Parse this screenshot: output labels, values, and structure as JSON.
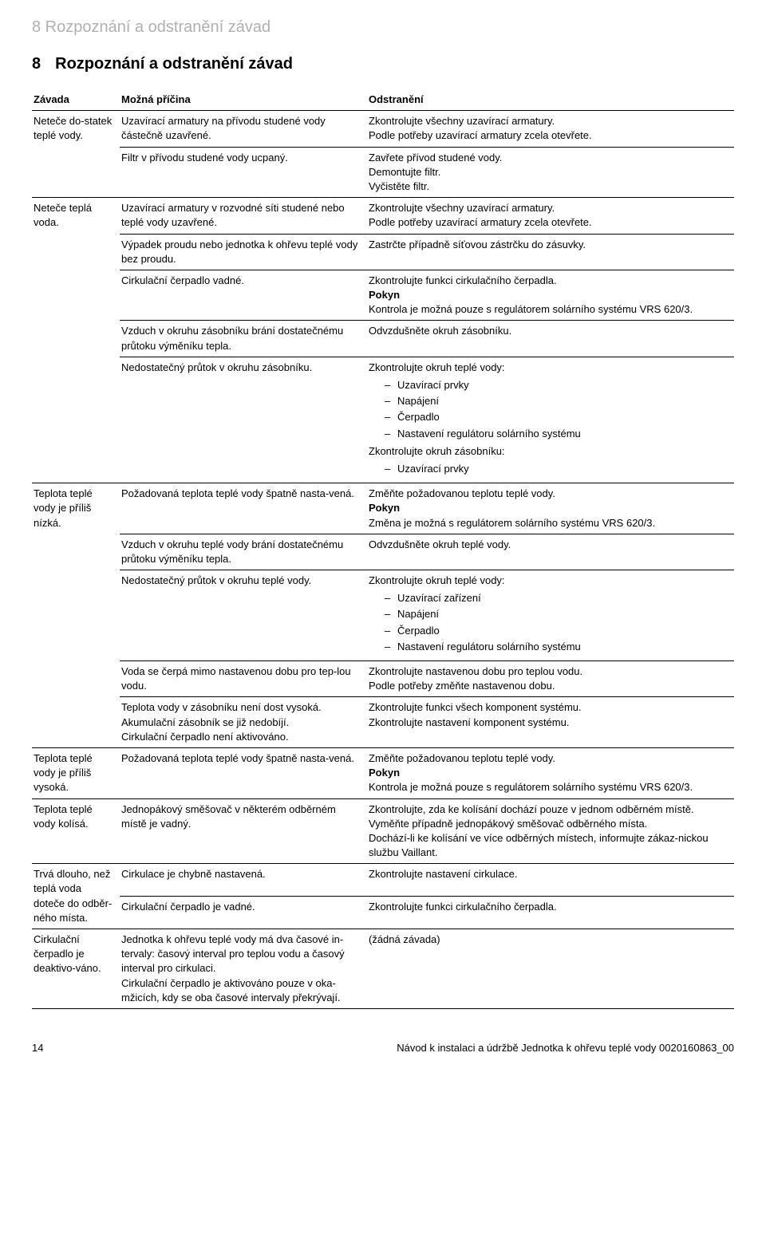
{
  "breadcrumb": "8 Rozpoznání a odstranění závad",
  "section_number": "8",
  "section_title": "Rozpoznání a odstranění závad",
  "headers": {
    "col1": "Závada",
    "col2": "Možná příčina",
    "col3": "Odstranění"
  },
  "r1": {
    "zavada": "Neteče do-statek teplé vody.",
    "p1": "Uzavírací armatury na přívodu studené vody částečně uzavřené.",
    "o1": "Zkontrolujte všechny uzavírací armatury.\nPodle potřeby uzavírací armatury zcela otevřete.",
    "p2": "Filtr v přívodu studené vody ucpaný.",
    "o2": "Zavřete přívod studené vody.\nDemontujte filtr.\nVyčistěte filtr."
  },
  "r2": {
    "zavada": "Neteče teplá voda.",
    "p1": "Uzavírací armatury v rozvodné síti studené nebo teplé vody uzavřené.",
    "o1": "Zkontrolujte všechny uzavírací armatury.\nPodle potřeby uzavírací armatury zcela otevřete.",
    "p2": "Výpadek proudu nebo jednotka k ohřevu teplé vody bez proudu.",
    "o2": "Zastrčte případně síťovou zástrčku do zásuvky.",
    "p3": "Cirkulační čerpadlo vadné.",
    "o3a": "Zkontrolujte funkci cirkulačního čerpadla.",
    "o3b": "Pokyn",
    "o3c": "Kontrola je možná pouze s regulátorem solárního systému VRS 620/3.",
    "p4": "Vzduch v okruhu zásobníku brání dostatečnému průtoku výměníku tepla.",
    "o4": "Odvzdušněte okruh zásobníku.",
    "p5": "Nedostatečný průtok v okruhu zásobníku.",
    "o5": "Zkontrolujte okruh teplé vody:",
    "o5_l1": "Uzavírací prvky",
    "o5_l2": "Napájení",
    "o5_l3": "Čerpadlo",
    "o5_l4": "Nastavení regulátoru solárního systému",
    "o5b": "Zkontrolujte okruh zásobníku:",
    "o5b_l1": "Uzavírací prvky"
  },
  "r3": {
    "zavada": "Teplota teplé vody je příliš nízká.",
    "p1": "Požadovaná teplota teplé vody špatně nasta-vená.",
    "o1a": "Změňte požadovanou teplotu teplé vody.",
    "o1b": "Pokyn",
    "o1c": "Změna je možná s regulátorem solárního systému VRS 620/3.",
    "p2": "Vzduch v okruhu teplé vody brání dostatečnému průtoku výměníku tepla.",
    "o2": "Odvzdušněte okruh teplé vody.",
    "p3": "Nedostatečný průtok v okruhu teplé vody.",
    "o3": "Zkontrolujte okruh teplé vody:",
    "o3_l1": "Uzavírací zařízení",
    "o3_l2": "Napájení",
    "o3_l3": "Čerpadlo",
    "o3_l4": "Nastavení regulátoru solárního systému",
    "p4": "Voda se čerpá mimo nastavenou dobu pro tep-lou vodu.",
    "o4": "Zkontrolujte nastavenou dobu pro teplou vodu.\nPodle potřeby změňte nastavenou dobu.",
    "p5": "Teplota vody v zásobníku není dost vysoká.\nAkumulační zásobník se již nedobíjí.\nCirkulační čerpadlo není aktivováno.",
    "o5": "Zkontrolujte funkci všech komponent systému.\nZkontrolujte nastavení komponent systému."
  },
  "r4": {
    "zavada": "Teplota teplé vody je příliš vysoká.",
    "p1": "Požadovaná teplota teplé vody špatně nasta-vená.",
    "o1a": "Změňte požadovanou teplotu teplé vody.",
    "o1b": "Pokyn",
    "o1c": "Kontrola je možná pouze s regulátorem solárního systému VRS 620/3."
  },
  "r5": {
    "zavada": "Teplota teplé vody kolísá.",
    "p1": "Jednopákový směšovač v některém odběrném místě je vadný.",
    "o1": "Zkontrolujte, zda ke kolísání dochází pouze v jednom odběrném místě.\nVyměňte případně jednopákový směšovač odběrného místa.\nDochází-li ke kolísání ve více odběrných místech, informujte zákaz-nickou službu Vaillant."
  },
  "r6": {
    "zavada": "Trvá dlouho, než teplá voda doteče do odběr-ného místa.",
    "p1": "Cirkulace je chybně nastavená.",
    "o1": "Zkontrolujte nastavení cirkulace.",
    "p2": "Cirkulační čerpadlo je vadné.",
    "o2": "Zkontrolujte funkci cirkulačního čerpadla."
  },
  "r7": {
    "zavada": "Cirkulační čerpadlo je deaktivo-váno.",
    "p1": "Jednotka k ohřevu teplé vody má dva časové in-tervaly: časový interval pro teplou vodu a časový interval pro cirkulaci.\nCirkulační čerpadlo je aktivováno pouze v oka-mžicích, kdy se oba časové intervaly překrývají.",
    "o1": "(žádná závada)"
  },
  "footer": {
    "page": "14",
    "doc": "Návod k instalaci a údržbě Jednotka k ohřevu teplé vody 0020160863_00"
  }
}
